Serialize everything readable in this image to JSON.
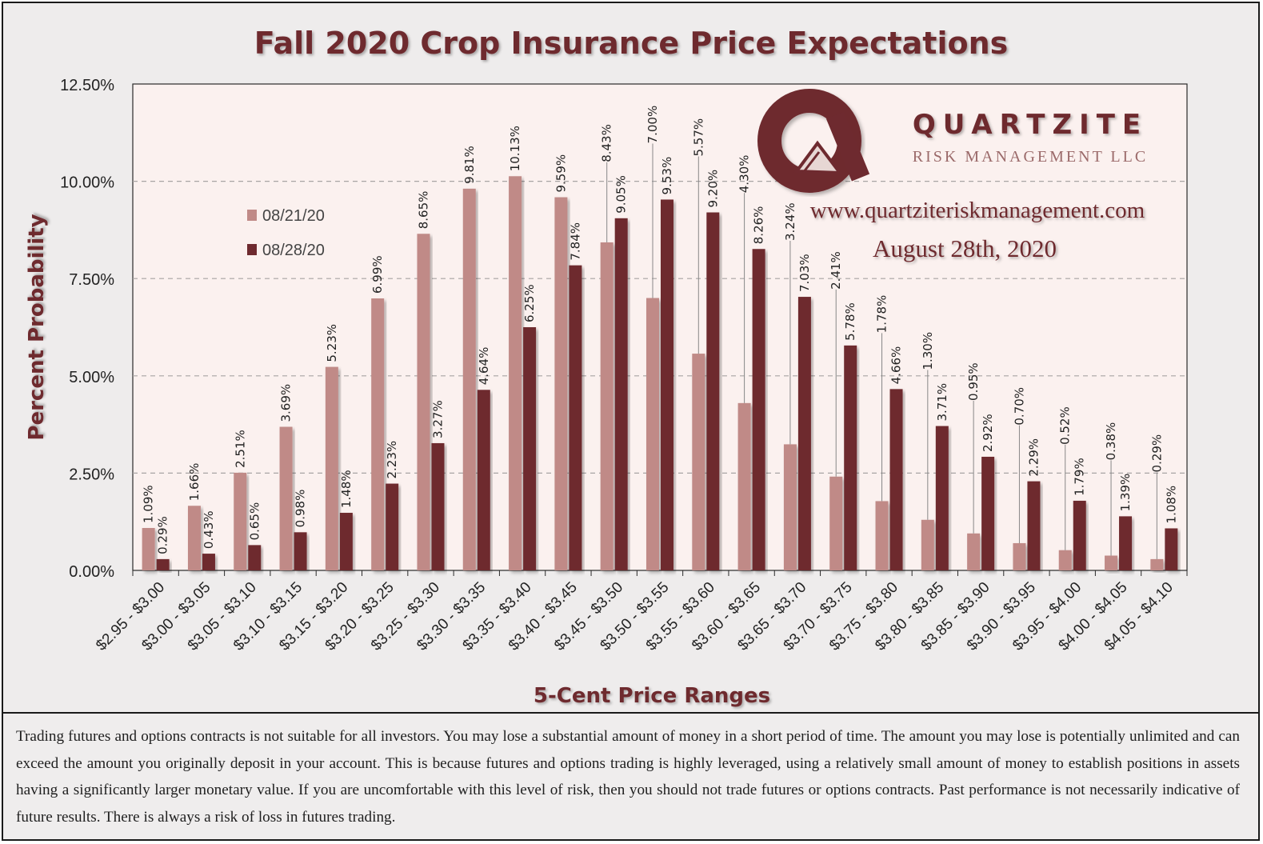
{
  "chart_data": {
    "type": "bar",
    "title": "Fall 2020 Crop Insurance Price Expectations",
    "xlabel": "5-Cent Price Ranges",
    "ylabel": "Percent Probability",
    "ylim": [
      0,
      12.5
    ],
    "y_ticks": [
      "0.00%",
      "2.50%",
      "5.00%",
      "7.50%",
      "10.00%",
      "12.50%"
    ],
    "y_tick_values": [
      0,
      2.5,
      5,
      7.5,
      10,
      12.5
    ],
    "grid": true,
    "legend_position": "top-left",
    "categories": [
      "$2.95 - $3.00",
      "$3.00 - $3.05",
      "$3.05 - $3.10",
      "$3.10 - $3.15",
      "$3.15 - $3.20",
      "$3.20 - $3.25",
      "$3.25 - $3.30",
      "$3.30 - $3.35",
      "$3.35 - $3.40",
      "$3.40 - $3.45",
      "$3.45 - $3.50",
      "$3.50 - $3.55",
      "$3.55 - $3.60",
      "$3.60 - $3.65",
      "$3.65 - $3.70",
      "$3.70 - $3.75",
      "$3.75 - $3.80",
      "$3.80 - $3.85",
      "$3.85 - $3.90",
      "$3.90 - $3.95",
      "$3.95 - $4.00",
      "$4.00 - $4.05",
      "$4.05 - $4.10"
    ],
    "series": [
      {
        "name": "08/21/20",
        "color": "#c08a87",
        "values": [
          1.09,
          1.66,
          2.51,
          3.69,
          5.23,
          6.99,
          8.65,
          9.81,
          10.13,
          9.59,
          8.43,
          7.0,
          5.57,
          4.3,
          3.24,
          2.41,
          1.78,
          1.3,
          0.95,
          0.7,
          0.52,
          0.38,
          0.29
        ],
        "labels": [
          "1.09%",
          "1.66%",
          "2.51%",
          "3.69%",
          "5.23%",
          "6.99%",
          "8.65%",
          "9.81%",
          "10.13%",
          "9.59%",
          "8.43%",
          "7.00%",
          "5.57%",
          "4.30%",
          "3.24%",
          "2.41%",
          "1.78%",
          "1.30%",
          "0.95%",
          "0.70%",
          "0.52%",
          "0.38%",
          "0.29%"
        ]
      },
      {
        "name": "08/28/20",
        "color": "#6e2a2f",
        "values": [
          0.29,
          0.43,
          0.65,
          0.98,
          1.48,
          2.23,
          3.27,
          4.64,
          6.25,
          7.84,
          9.05,
          9.53,
          9.2,
          8.26,
          7.03,
          5.78,
          4.66,
          3.71,
          2.92,
          2.29,
          1.79,
          1.39,
          1.08
        ],
        "labels": [
          "0.29%",
          "0.43%",
          "0.65%",
          "0.98%",
          "1.48%",
          "2.23%",
          "3.27%",
          "4.64%",
          "6.25%",
          "7.84%",
          "9.05%",
          "9.53%",
          "9.20%",
          "8.26%",
          "7.03%",
          "5.78%",
          "4.66%",
          "3.71%",
          "2.92%",
          "2.29%",
          "1.79%",
          "1.39%",
          "1.08%"
        ]
      }
    ]
  },
  "branding": {
    "company_name": "QUARTZITE",
    "company_subtitle": "RISK MANAGEMENT LLC",
    "website": "www.quartziteriskmanagement.com",
    "date": "August 28th, 2020",
    "logo_icon": "quartzite-q-logo-icon"
  },
  "colors": {
    "title": "#6e2a2f",
    "plot_bg": "#fbf1ef",
    "frame_bg": "#eeecec",
    "brand": "#6e2a2f"
  },
  "disclaimer": "Trading futures and options contracts is not suitable for all investors. You may lose a substantial amount of money in a short period of time. The amount you may lose is potentially unlimited and can exceed the amount you originally deposit in your account. This is because futures and options trading is highly leveraged, using a relatively small amount of money to establish positions in assets having a significantly larger monetary value. If you are uncomfortable with this level of risk, then you should not trade futures or options contracts. Past performance is not necessarily indicative of future results. There is always a risk of loss in futures trading."
}
